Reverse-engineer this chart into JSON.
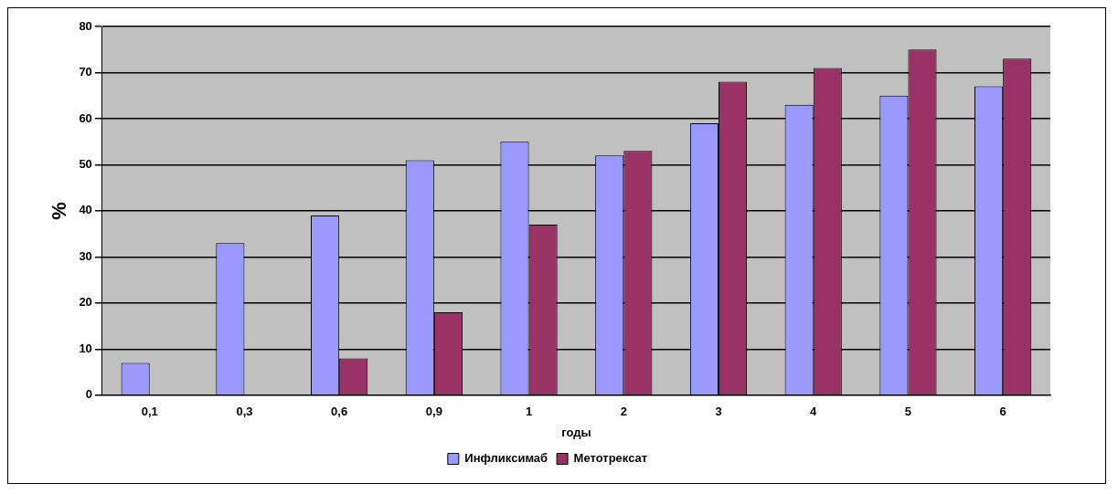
{
  "chart_data": {
    "type": "bar",
    "xlabel": "годы",
    "ylabel": "%",
    "categories": [
      "0,1",
      "0,3",
      "0,6",
      "0,9",
      "1",
      "2",
      "3",
      "4",
      "5",
      "6"
    ],
    "series": [
      {
        "name": "Инфликсимаб",
        "color": "#9999ff",
        "values": [
          7,
          33,
          39,
          51,
          55,
          52,
          59,
          63,
          65,
          67
        ]
      },
      {
        "name": "Метотрексат",
        "color": "#993366",
        "values": [
          0,
          0,
          8,
          18,
          37,
          53,
          68,
          71,
          75,
          73
        ]
      }
    ],
    "ylim": [
      0,
      80
    ],
    "yticks": [
      0,
      10,
      20,
      30,
      40,
      50,
      60,
      70,
      80
    ],
    "grid": "y",
    "legend": "bottom"
  }
}
